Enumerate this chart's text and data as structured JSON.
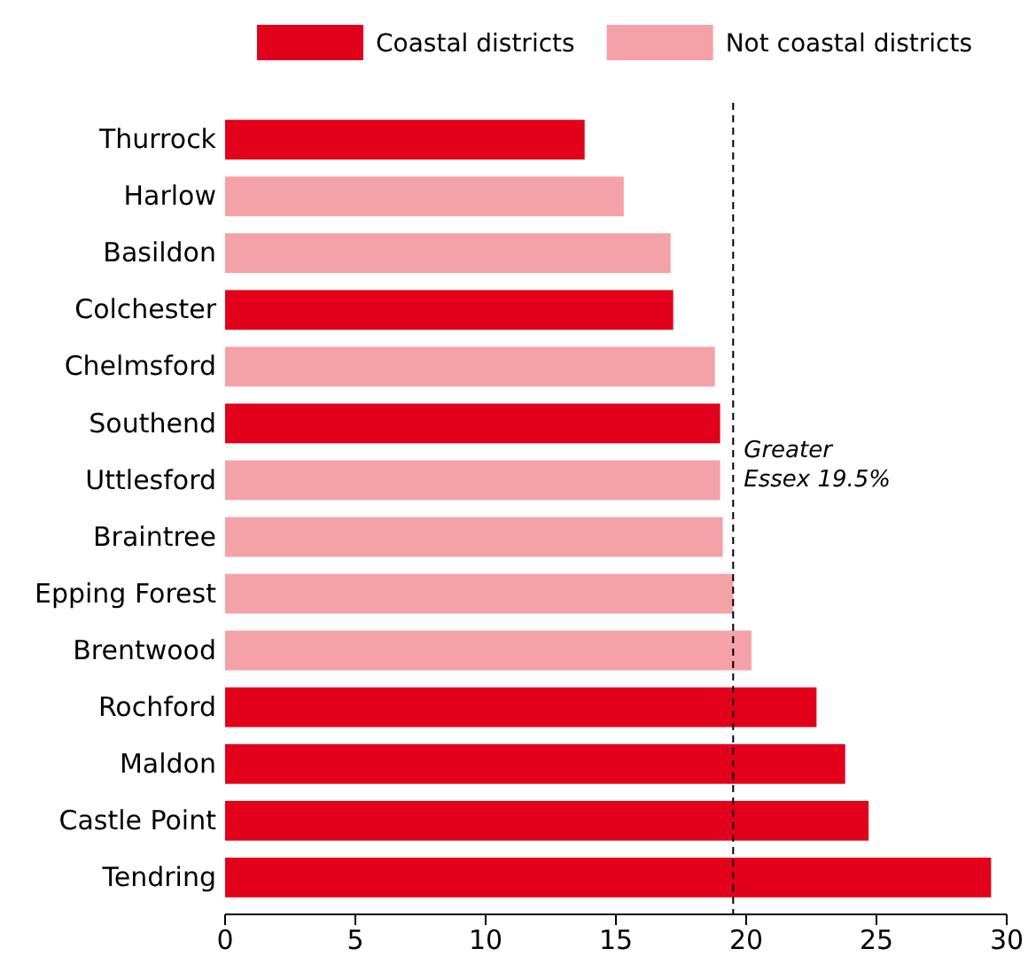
{
  "chart_data": {
    "type": "bar",
    "orientation": "horizontal",
    "categories": [
      "Thurrock",
      "Harlow",
      "Basildon",
      "Colchester",
      "Chelmsford",
      "Southend",
      "Uttlesford",
      "Braintree",
      "Epping Forest",
      "Brentwood",
      "Rochford",
      "Maldon",
      "Castle Point",
      "Tendring"
    ],
    "series": [
      {
        "name": "Coastal districts",
        "color": "#e2001a",
        "values": [
          13.8,
          null,
          null,
          17.2,
          null,
          19.0,
          null,
          null,
          null,
          null,
          22.7,
          23.8,
          24.7,
          29.4
        ]
      },
      {
        "name": "Not coastal districts",
        "color": "#f4a1a8",
        "values": [
          null,
          15.3,
          17.1,
          null,
          18.8,
          null,
          19.0,
          19.1,
          19.5,
          20.2,
          null,
          null,
          null,
          null
        ]
      }
    ],
    "xlim": [
      0,
      30
    ],
    "xticks": [
      0,
      5,
      10,
      15,
      20,
      25,
      30
    ],
    "grid": false,
    "legend": "top",
    "ref_lines": [
      {
        "axis": "x",
        "value": 19.5,
        "label": "Greater Essex 19.5%",
        "color": "#000000",
        "line_style": "dashed"
      }
    ]
  }
}
